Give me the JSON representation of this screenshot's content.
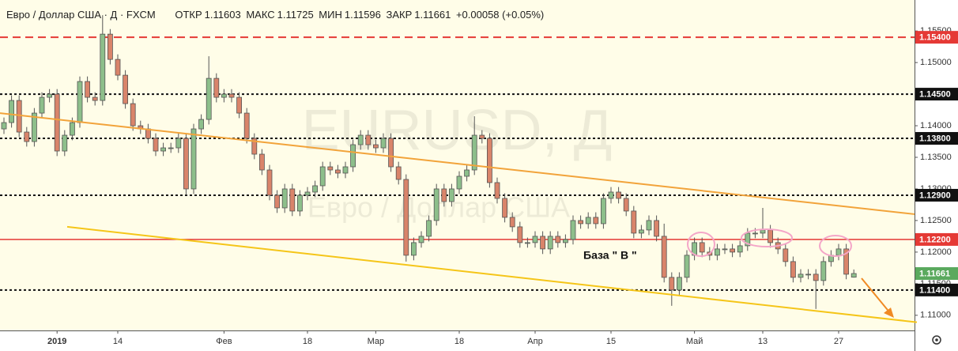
{
  "header": {
    "symbol": "Евро / Доллар США · Д · FXCM",
    "open_label": "ОТКР",
    "high_label": "МАКС",
    "low_label": "МИН",
    "close_label": "ЗАКР",
    "change": "+0.00058 (+0.05%)"
  },
  "watermark": {
    "symbol": "EURUSD, Д",
    "description": "Евро / Доллар США"
  },
  "chart_data": {
    "type": "candlestick",
    "annotation": "База  \" В \"",
    "up_color": "#8dbf8b",
    "down_color": "#d9846a",
    "last_price_color": "#5aa95e",
    "categories": [
      null,
      null,
      null,
      null,
      null,
      null,
      null,
      "2019",
      null,
      null,
      null,
      null,
      null,
      null,
      null,
      "14",
      null,
      null,
      null,
      null,
      null,
      null,
      null,
      null,
      null,
      null,
      null,
      null,
      null,
      "Фев",
      null,
      null,
      null,
      null,
      null,
      null,
      null,
      null,
      null,
      null,
      "18",
      null,
      null,
      null,
      null,
      null,
      null,
      null,
      null,
      "Мар",
      null,
      null,
      null,
      null,
      null,
      null,
      null,
      null,
      null,
      null,
      "18",
      null,
      null,
      null,
      null,
      null,
      null,
      null,
      null,
      null,
      "Апр",
      null,
      null,
      null,
      null,
      null,
      null,
      null,
      null,
      null,
      "15",
      null,
      null,
      null,
      null,
      null,
      null,
      null,
      null,
      null,
      null,
      "Май",
      null,
      null,
      null,
      null,
      null,
      null,
      null,
      null,
      "13",
      null,
      null,
      null,
      null,
      null,
      null,
      null,
      null,
      null,
      "27",
      null,
      null
    ],
    "open": [
      1.1395,
      1.1405,
      1.144,
      1.139,
      1.1375,
      1.142,
      1.1445,
      1.145,
      1.136,
      1.1385,
      1.1405,
      1.147,
      1.1445,
      1.144,
      1.1545,
      1.1505,
      1.148,
      1.1435,
      1.14,
      1.1395,
      1.138,
      1.136,
      1.1365,
      1.1365,
      1.138,
      1.13,
      1.1395,
      1.141,
      1.1475,
      1.1445,
      1.145,
      1.1445,
      1.142,
      1.138,
      1.1355,
      1.133,
      1.129,
      1.127,
      1.13,
      1.1265,
      1.129,
      1.1295,
      1.1305,
      1.1335,
      1.133,
      1.1325,
      1.1335,
      1.137,
      1.1385,
      1.137,
      1.1365,
      1.138,
      1.1335,
      1.1315,
      1.1195,
      1.1215,
      1.1225,
      1.125,
      1.13,
      1.128,
      1.13,
      1.132,
      1.133,
      1.1385,
      1.138,
      1.131,
      1.1285,
      1.1255,
      1.124,
      1.1215,
      1.1215,
      1.1225,
      1.1205,
      1.1225,
      1.1215,
      1.122,
      1.125,
      1.1245,
      1.1255,
      1.1245,
      1.1285,
      1.1295,
      1.1285,
      1.1265,
      1.123,
      1.1235,
      1.125,
      1.1225,
      1.116,
      1.114,
      1.116,
      1.1195,
      1.1215,
      1.12,
      1.1195,
      1.1205,
      1.1205,
      1.12,
      1.121,
      1.123,
      1.123,
      1.1235,
      1.1215,
      1.1205,
      1.1185,
      1.116,
      1.1165,
      1.1165,
      1.1155,
      1.1185,
      1.1195,
      1.1205,
      1.11603
    ],
    "high": [
      1.1413,
      1.1448,
      1.1448,
      1.1398,
      1.1428,
      1.1453,
      1.1458,
      1.1458,
      1.1393,
      1.1413,
      1.1478,
      1.1478,
      1.1453,
      1.1575,
      1.1553,
      1.1513,
      1.1488,
      1.1443,
      1.1408,
      1.1403,
      1.1388,
      1.1373,
      1.1373,
      1.1388,
      1.1388,
      1.1403,
      1.1418,
      1.151,
      1.1483,
      1.1458,
      1.1458,
      1.1453,
      1.1428,
      1.1388,
      1.1363,
      1.1338,
      1.1298,
      1.1308,
      1.1308,
      1.1298,
      1.1303,
      1.1313,
      1.1343,
      1.1343,
      1.1338,
      1.1343,
      1.1378,
      1.1393,
      1.1393,
      1.1378,
      1.1388,
      1.1388,
      1.1343,
      1.1323,
      1.1223,
      1.1233,
      1.1258,
      1.1308,
      1.1308,
      1.1308,
      1.1328,
      1.1338,
      1.1415,
      1.1393,
      1.1388,
      1.1318,
      1.1293,
      1.1263,
      1.1248,
      1.1223,
      1.1233,
      1.1233,
      1.1233,
      1.1233,
      1.1228,
      1.1258,
      1.1258,
      1.1263,
      1.1263,
      1.1293,
      1.1303,
      1.1303,
      1.1293,
      1.1273,
      1.1243,
      1.1258,
      1.1258,
      1.1245,
      1.1168,
      1.1168,
      1.1203,
      1.1223,
      1.1223,
      1.1208,
      1.1213,
      1.1213,
      1.1213,
      1.1218,
      1.1238,
      1.1238,
      1.127,
      1.1243,
      1.1223,
      1.1213,
      1.1193,
      1.1173,
      1.1173,
      1.1173,
      1.1193,
      1.1203,
      1.1213,
      1.1213,
      1.11725
    ],
    "low": [
      1.1387,
      1.1397,
      1.1382,
      1.1367,
      1.1367,
      1.1412,
      1.1437,
      1.1352,
      1.1352,
      1.1377,
      1.1397,
      1.1437,
      1.1432,
      1.1432,
      1.1497,
      1.1472,
      1.1427,
      1.1392,
      1.1387,
      1.1372,
      1.1352,
      1.1352,
      1.1357,
      1.1357,
      1.129,
      1.1292,
      1.1387,
      1.1402,
      1.1437,
      1.1437,
      1.1437,
      1.1412,
      1.1372,
      1.1347,
      1.1322,
      1.1282,
      1.1262,
      1.1262,
      1.1257,
      1.1257,
      1.1282,
      1.1287,
      1.1297,
      1.1322,
      1.1317,
      1.1317,
      1.1327,
      1.1362,
      1.1362,
      1.1357,
      1.1357,
      1.1327,
      1.1307,
      1.1185,
      1.1187,
      1.1207,
      1.1217,
      1.1242,
      1.1272,
      1.1272,
      1.1292,
      1.1312,
      1.1322,
      1.1372,
      1.1302,
      1.1277,
      1.1247,
      1.1232,
      1.1207,
      1.1207,
      1.1207,
      1.1197,
      1.1197,
      1.1207,
      1.1207,
      1.1212,
      1.1237,
      1.1237,
      1.1237,
      1.1237,
      1.1277,
      1.1277,
      1.1257,
      1.1222,
      1.1222,
      1.1227,
      1.1217,
      1.1152,
      1.1115,
      1.1132,
      1.1152,
      1.1187,
      1.1192,
      1.1187,
      1.1187,
      1.1197,
      1.1192,
      1.1192,
      1.1202,
      1.1222,
      1.1222,
      1.1207,
      1.1197,
      1.1177,
      1.1152,
      1.1152,
      1.1157,
      1.111,
      1.1147,
      1.1177,
      1.1187,
      1.1157,
      1.11596
    ],
    "close": [
      1.1405,
      1.144,
      1.139,
      1.1375,
      1.142,
      1.1445,
      1.145,
      1.136,
      1.1385,
      1.1405,
      1.147,
      1.1445,
      1.144,
      1.1545,
      1.1505,
      1.148,
      1.1435,
      1.14,
      1.1395,
      1.138,
      1.136,
      1.1365,
      1.1365,
      1.138,
      1.13,
      1.1395,
      1.141,
      1.1475,
      1.1445,
      1.145,
      1.1445,
      1.142,
      1.138,
      1.1355,
      1.133,
      1.129,
      1.127,
      1.13,
      1.1265,
      1.129,
      1.1295,
      1.1305,
      1.1335,
      1.133,
      1.1325,
      1.1335,
      1.137,
      1.1385,
      1.137,
      1.1365,
      1.138,
      1.1335,
      1.1315,
      1.1195,
      1.1215,
      1.1225,
      1.125,
      1.13,
      1.128,
      1.13,
      1.132,
      1.133,
      1.1385,
      1.138,
      1.131,
      1.1285,
      1.1255,
      1.124,
      1.1215,
      1.1215,
      1.1225,
      1.1205,
      1.1225,
      1.1215,
      1.122,
      1.125,
      1.1245,
      1.1255,
      1.1245,
      1.1285,
      1.1295,
      1.1285,
      1.1265,
      1.123,
      1.1235,
      1.125,
      1.1225,
      1.116,
      1.114,
      1.116,
      1.1195,
      1.1215,
      1.12,
      1.1195,
      1.1205,
      1.1205,
      1.12,
      1.121,
      1.123,
      1.123,
      1.1235,
      1.1215,
      1.1205,
      1.1185,
      1.116,
      1.1165,
      1.1165,
      1.1155,
      1.1185,
      1.1195,
      1.1205,
      1.1165,
      1.11661
    ],
    "ylim": [
      1.1076,
      1.1599
    ],
    "yticks": [
      {
        "value": 1.155,
        "label": "1.15500"
      },
      {
        "value": 1.15,
        "label": "1.15000"
      },
      {
        "value": 1.14,
        "label": "1.14000"
      },
      {
        "value": 1.135,
        "label": "1.13500"
      },
      {
        "value": 1.13,
        "label": "1.13000"
      },
      {
        "value": 1.125,
        "label": "1.12500"
      },
      {
        "value": 1.12,
        "label": "1.12000"
      },
      {
        "value": 1.115,
        "label": "1.11500"
      },
      {
        "value": 1.11,
        "label": "1.11000"
      }
    ],
    "levels": [
      {
        "value": 1.154,
        "label": "1.15400",
        "color": "#e53935",
        "style": "dashed"
      },
      {
        "value": 1.145,
        "label": "1.14500",
        "color": "#111111",
        "style": "dotted"
      },
      {
        "value": 1.138,
        "label": "1.13800",
        "color": "#111111",
        "style": "dotted"
      },
      {
        "value": 1.129,
        "label": "1.12900",
        "color": "#111111",
        "style": "dotted"
      },
      {
        "value": 1.122,
        "label": "1.12200",
        "color": "#e53935",
        "style": "solid"
      },
      {
        "value": 1.114,
        "label": "1.11400",
        "color": "#111111",
        "style": "dotted"
      }
    ],
    "trendlines": [
      {
        "values": [
          1.142,
          1.126
        ],
        "color": "#f2a33a"
      },
      {
        "values": [
          1.124,
          1.1089
        ],
        "color": "#f5c518"
      }
    ]
  }
}
